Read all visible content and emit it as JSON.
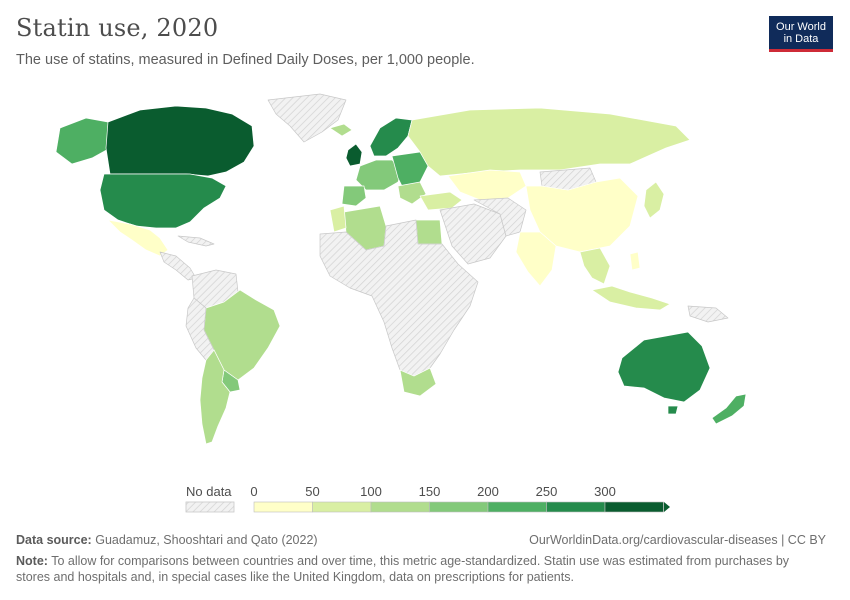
{
  "header": {
    "title": "Statin use, 2020",
    "subtitle": "The use of statins, measured in Defined Daily Doses, per 1,000 people.",
    "logo_line1": "Our World",
    "logo_line2": "in Data"
  },
  "legend": {
    "no_data_label": "No data",
    "ticks": [
      "0",
      "50",
      "100",
      "150",
      "200",
      "250",
      "300"
    ],
    "colors": [
      "#ffffc8",
      "#d9efa3",
      "#b1dd8e",
      "#83c97a",
      "#4eaf63",
      "#258b4c",
      "#0a5c2f"
    ],
    "no_data_color": "#e8e8e8"
  },
  "footer": {
    "source_label": "Data source:",
    "source_text": "Guadamuz, Shooshtari and Qato (2022)",
    "url": "OurWorldinData.org/cardiovascular-diseases | CC BY",
    "note_label": "Note:",
    "note_text": "To allow for comparisons between countries and over time, this metric age-standardized. Statin use was estimated from purchases by stores and hospitals and, in special cases like the United Kingdom, data on prescriptions for patients."
  }
}
